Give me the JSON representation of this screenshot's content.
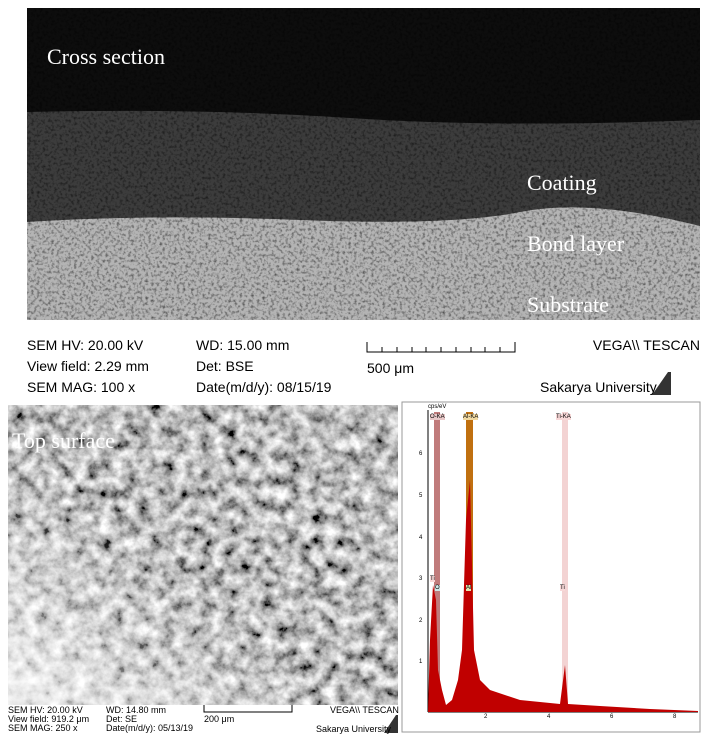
{
  "cross_section": {
    "label": "Cross section",
    "layers": [
      "Coating",
      "Bond layer",
      "Substrate"
    ],
    "info": {
      "hv": "SEM HV: 20.00 kV",
      "view_field": "View field: 2.29 mm",
      "mag": "SEM MAG: 100 x",
      "wd": "WD: 15.00 mm",
      "det": "Det: BSE",
      "date": "Date(m/d/y): 08/15/19",
      "scale": "500 μm",
      "brand": "VEGA\\\\ TESCAN",
      "org": "Sakarya University"
    }
  },
  "top_surface": {
    "label": "Top surface",
    "info": {
      "hv": "SEM HV: 20.00 kV",
      "view_field": "View field: 919.2 μm",
      "mag": "SEM MAG: 250 x",
      "wd": "WD: 14.80 mm",
      "det": "Det: SE",
      "date": "Date(m/d/y): 05/13/19",
      "scale": "200 μm",
      "brand": "VEGA\\\\ TESCAN",
      "org": "Sakarya University"
    }
  },
  "spectrum": {
    "y_unit": "cps/eV",
    "peak_labels": [
      "O-KA",
      "Al-KA",
      "Ti-KA"
    ],
    "marker_labels": [
      "Ti",
      "O",
      "Al",
      "Ti"
    ],
    "yticks": [
      1,
      2,
      3,
      4,
      5,
      6
    ],
    "xticks": [
      2,
      4,
      6,
      8
    ]
  }
}
